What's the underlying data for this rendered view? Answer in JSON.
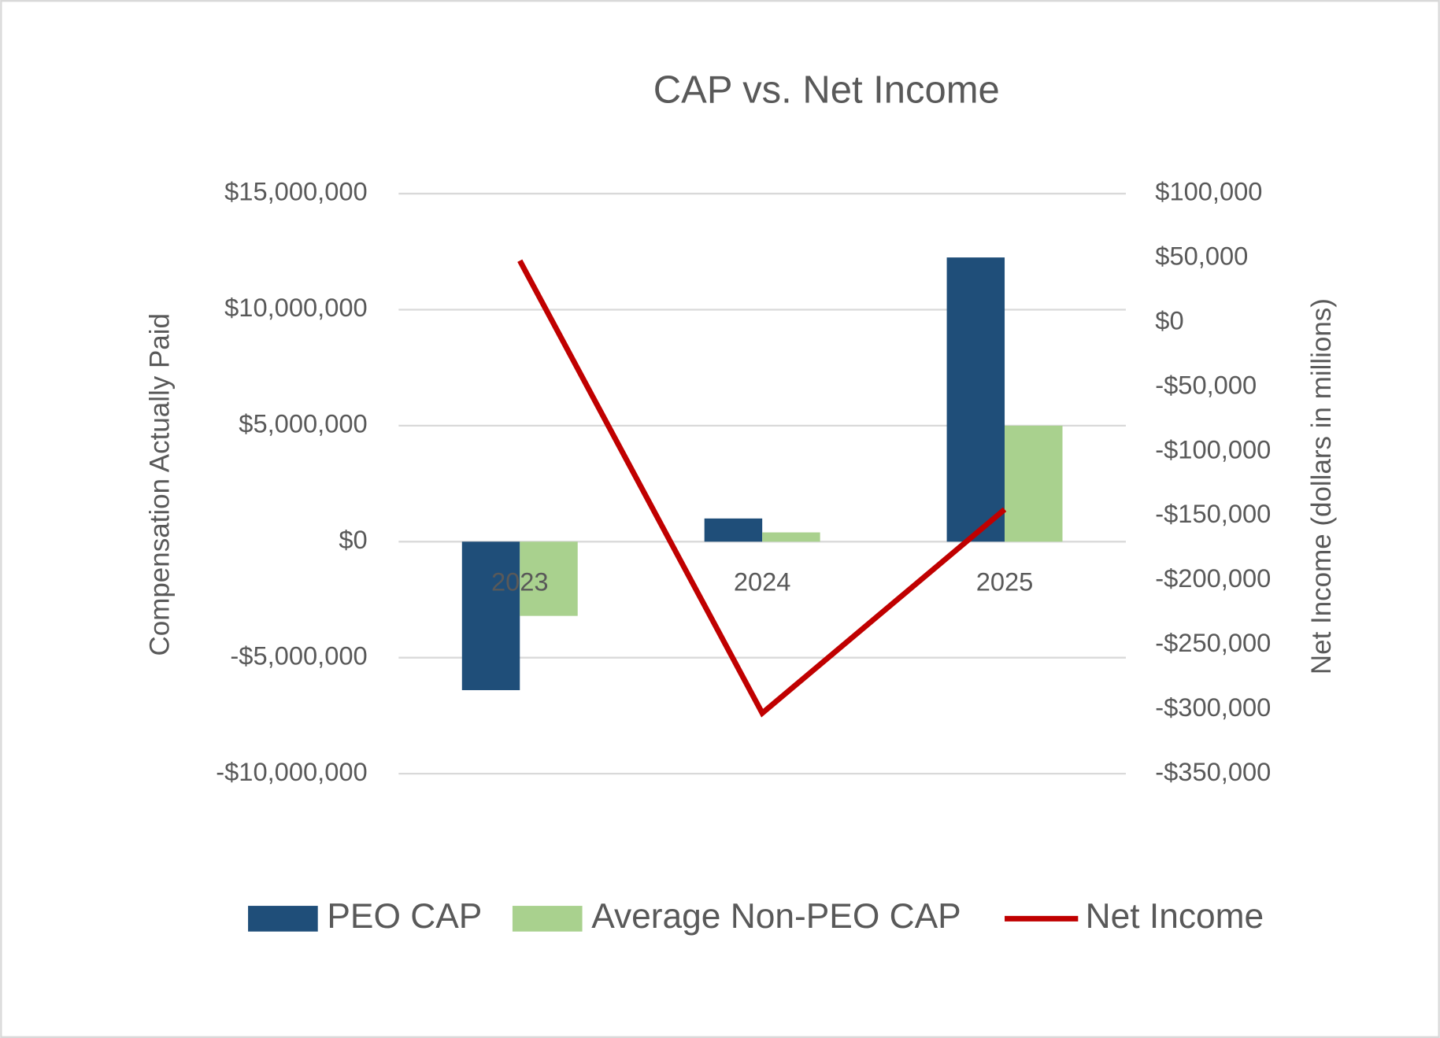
{
  "chart_data": {
    "type": "bar",
    "title": "CAP vs. Net Income",
    "y_label": "Compensation Actually Paid",
    "y2_label": "Net Income (dollars in millions)",
    "categories": [
      "2023",
      "2024",
      "2025"
    ],
    "series": [
      {
        "name": "PEO CAP",
        "color": "#1f4e79",
        "type": "bar",
        "values": [
          -6400000,
          1000000,
          12250000
        ]
      },
      {
        "name": "Average Non-PEO CAP",
        "color": "#a9d18e",
        "type": "bar",
        "values": [
          -3200000,
          400000,
          5000000
        ]
      },
      {
        "name": "Net Income",
        "color": "#c00000",
        "type": "line",
        "axis": "y2",
        "values": [
          48000,
          -303000,
          -145000
        ]
      }
    ],
    "ylim": [
      -10000000,
      15000000
    ],
    "yticks": [
      {
        "value": -10000000,
        "label": "-$10,000,000"
      },
      {
        "value": -5000000,
        "label": "-$5,000,000"
      },
      {
        "value": 0,
        "label": "$0"
      },
      {
        "value": 5000000,
        "label": "$5,000,000"
      },
      {
        "value": 10000000,
        "label": "$10,000,000"
      },
      {
        "value": 15000000,
        "label": "$15,000,000"
      }
    ],
    "y2lim": [
      -350000,
      100000
    ],
    "y2ticks": [
      {
        "value": -350000,
        "label": "-$350,000"
      },
      {
        "value": -300000,
        "label": "-$300,000"
      },
      {
        "value": -250000,
        "label": "-$250,000"
      },
      {
        "value": -200000,
        "label": "-$200,000"
      },
      {
        "value": -150000,
        "label": "-$150,000"
      },
      {
        "value": -100000,
        "label": "-$100,000"
      },
      {
        "value": -50000,
        "label": "-$50,000"
      },
      {
        "value": 0,
        "label": "$0"
      },
      {
        "value": 50000,
        "label": "$50,000"
      },
      {
        "value": 100000,
        "label": "$100,000"
      }
    ],
    "grid": true,
    "legend": "bottom"
  }
}
